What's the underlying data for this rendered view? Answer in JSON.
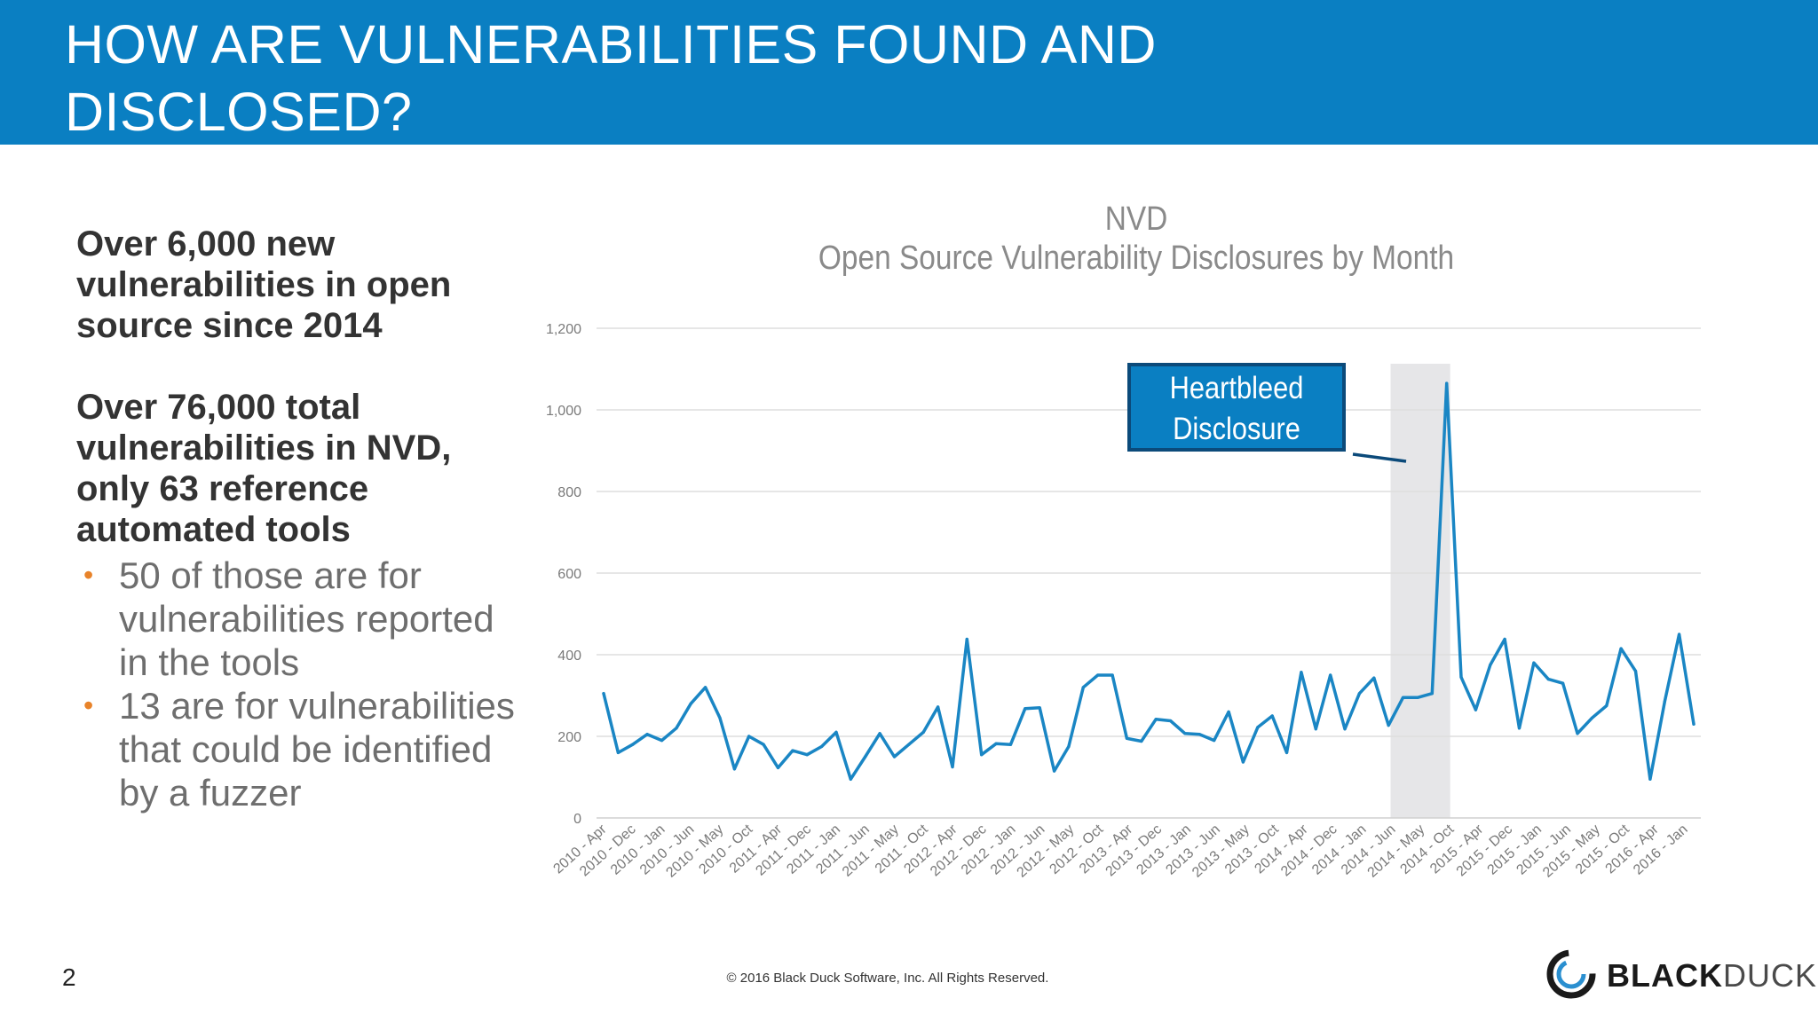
{
  "slide": {
    "title_line1": "HOW ARE VULNERABILITIES FOUND AND",
    "title_line2": "DISCLOSED?",
    "page_number": "2",
    "copyright": "© 2016 Black Duck Software, Inc.  All Rights Reserved."
  },
  "left_panel": {
    "stat1": "Over 6,000 new vulnerabilities in open source since 2014",
    "stat2": "Over 76,000 total vulnerabilities in NVD, only 63 reference automated tools",
    "bullets": [
      "50 of those are for vulnerabilities reported in the tools",
      "13 are for vulnerabilities that could be identified by a fuzzer"
    ]
  },
  "logo": {
    "bold": "BLACK",
    "light": "DUCK"
  },
  "colors": {
    "header": "#0a7fc2",
    "line": "#1a86c4",
    "bullet": "#e8832a",
    "highlight": "#e6e6e8",
    "callout_border": "#0b4a7a"
  },
  "chart_data": {
    "type": "line",
    "title": "NVD",
    "subtitle": "Open Source Vulnerability Disclosures by Month",
    "ylim": [
      0,
      1200
    ],
    "yticks": [
      0,
      200,
      400,
      600,
      800,
      1000,
      1200
    ],
    "ytick_labels": [
      "0",
      "200",
      "400",
      "600",
      "800",
      "1,000",
      "1,200"
    ],
    "grid": true,
    "xtick_labels": [
      "2010 - Apr",
      "2010 - Dec",
      "2010 - Jan",
      "2010 - Jun",
      "2010 - May",
      "2010 - Oct",
      "2011 - Apr",
      "2011 - Dec",
      "2011 - Jan",
      "2011 - Jun",
      "2011 - May",
      "2011 - Oct",
      "2012 - Apr",
      "2012 - Dec",
      "2012 - Jan",
      "2012 - Jun",
      "2012 - May",
      "2012 - Oct",
      "2013 - Apr",
      "2013 - Dec",
      "2013 - Jan",
      "2013 - Jun",
      "2013 - May",
      "2013 - Oct",
      "2014 - Apr",
      "2014 - Dec",
      "2014 - Jan",
      "2014 - Jun",
      "2014 - May",
      "2014 - Oct",
      "2015 - Apr",
      "2015 - Dec",
      "2015 - Jan",
      "2015 - Jun",
      "2015 - May",
      "2015 - Oct",
      "2016 - Apr",
      "2016 - Jan"
    ],
    "values": [
      305,
      160,
      180,
      205,
      190,
      220,
      280,
      320,
      245,
      120,
      200,
      180,
      123,
      165,
      155,
      175,
      210,
      95,
      150,
      207,
      150,
      180,
      210,
      272,
      125,
      438,
      155,
      182,
      180,
      268,
      270,
      115,
      175,
      320,
      350,
      350,
      195,
      188,
      242,
      238,
      207,
      205,
      190,
      260,
      137,
      222,
      250,
      160,
      357,
      218,
      350,
      218,
      305,
      343,
      227,
      295,
      295,
      305,
      1065,
      345,
      265,
      375,
      438,
      220,
      380,
      340,
      330,
      207,
      245,
      275,
      415,
      360,
      95,
      285,
      450,
      230
    ],
    "highlight_range_index": [
      55,
      58
    ],
    "annotation": {
      "line1": "Heartbleed",
      "line2": "Disclosure",
      "points_to_index": 55
    }
  }
}
